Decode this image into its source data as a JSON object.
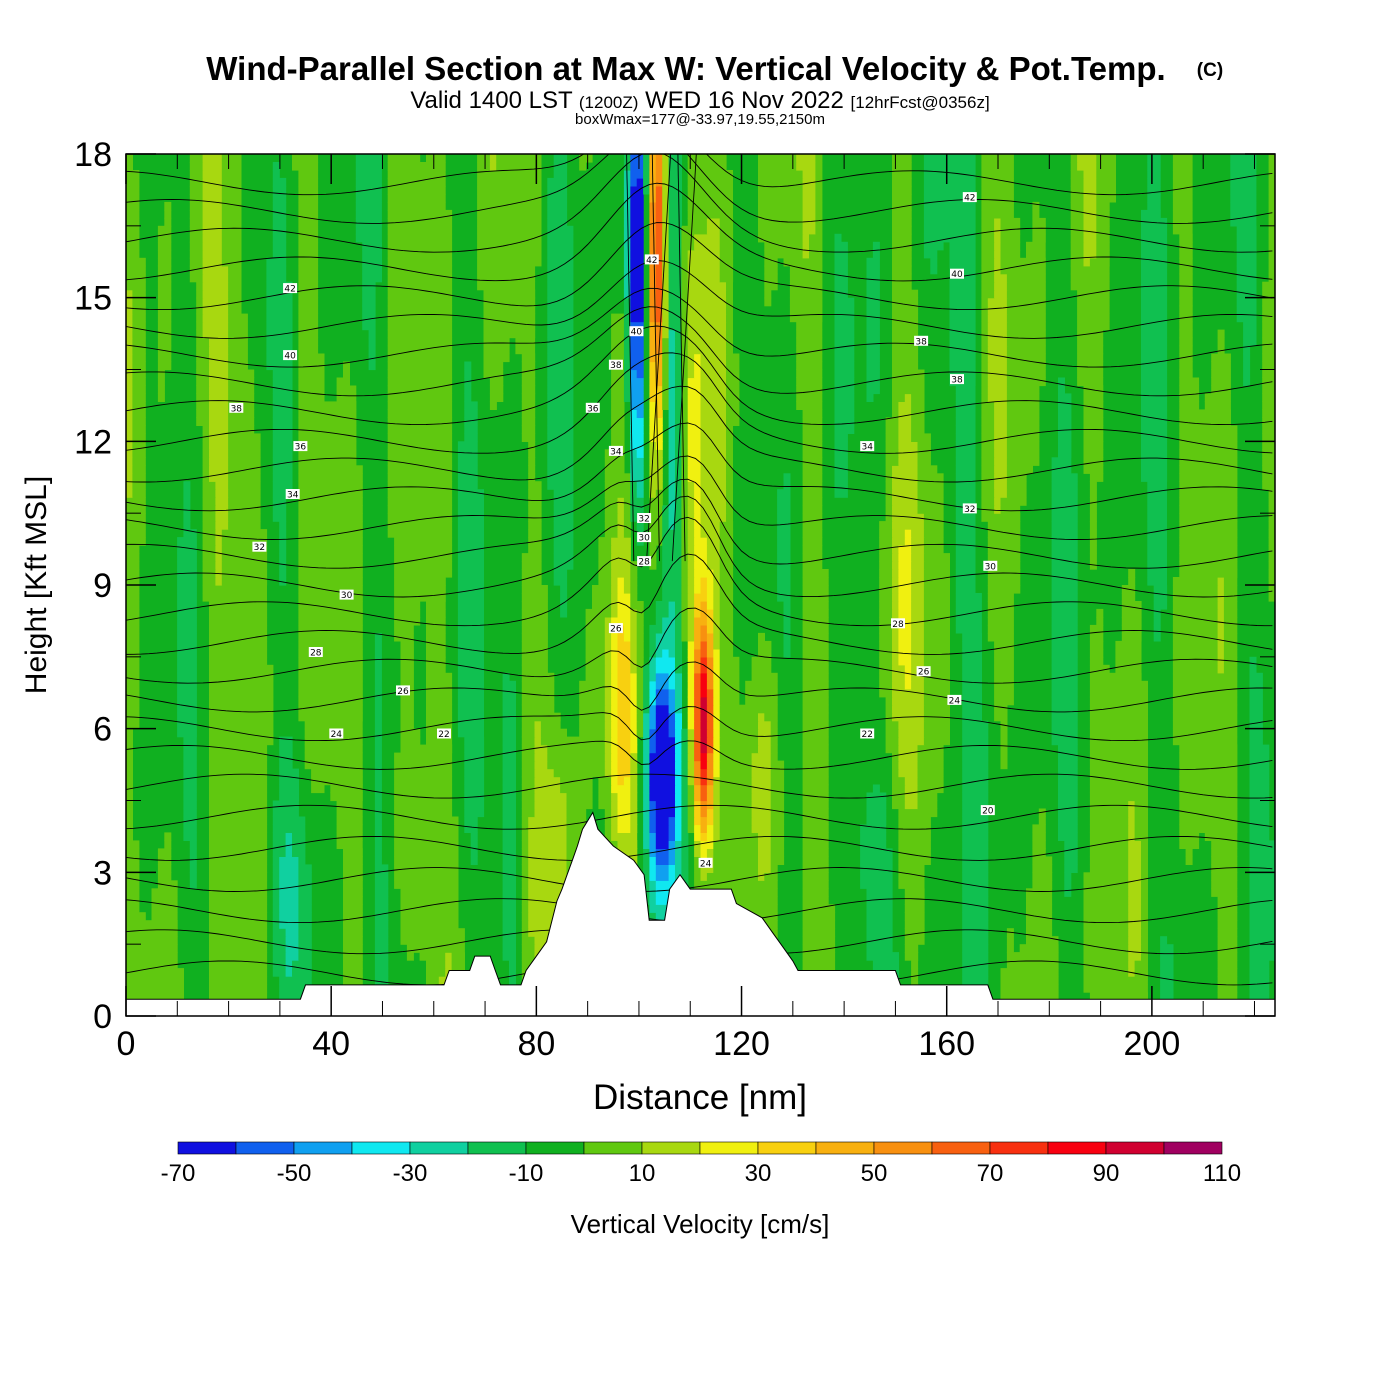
{
  "chart_data": {
    "type": "heatmap",
    "title": "Wind-Parallel Section at Max W: Vertical Velocity & Pot.Temp.",
    "copyright_mark": "(C)",
    "subtitle": {
      "valid": "Valid 1400 LST",
      "utc": "(1200Z)",
      "date": "WED 16 Nov 2022",
      "forecast": "[12hrFcst@0356z]"
    },
    "box_wmax": "boxWmax=177@-33.97,19.55,2150m",
    "xlabel": "Distance [nm]",
    "ylabel": "Height [Kft MSL]",
    "xlim": [
      0,
      224
    ],
    "ylim": [
      0,
      18
    ],
    "x_ticks": [
      "0",
      "40",
      "80",
      "120",
      "160",
      "200"
    ],
    "x_tick_values": [
      0,
      40,
      80,
      120,
      160,
      200
    ],
    "y_ticks": [
      "0",
      "3",
      "6",
      "9",
      "12",
      "15",
      "18"
    ],
    "y_tick_values": [
      0,
      3,
      6,
      9,
      12,
      15,
      18
    ],
    "colorbar": {
      "label": "Vertical Velocity [cm/s]",
      "tick_labels": [
        "-70",
        "-50",
        "-30",
        "-10",
        "10",
        "30",
        "50",
        "70",
        "90",
        "110"
      ],
      "bins": [
        -70,
        -60,
        -50,
        -40,
        -30,
        -20,
        -10,
        0,
        10,
        20,
        30,
        40,
        50,
        60,
        70,
        80,
        90,
        100,
        110
      ],
      "colors": [
        "#1010e0",
        "#1060ee",
        "#10a0f0",
        "#10e8f0",
        "#10d0a0",
        "#10c050",
        "#10b020",
        "#60c810",
        "#a8d810",
        "#f0f010",
        "#f8d010",
        "#f8b010",
        "#f89010",
        "#f86010",
        "#f83010",
        "#f80010",
        "#d00030",
        "#a00060"
      ]
    },
    "contour_variable": "Potential temperature",
    "contour_labels": [
      {
        "text": "42",
        "x": 32,
        "y": 15.2
      },
      {
        "text": "40",
        "x": 32,
        "y": 13.8
      },
      {
        "text": "38",
        "x": 21.5,
        "y": 12.7
      },
      {
        "text": "36",
        "x": 34,
        "y": 11.9
      },
      {
        "text": "34",
        "x": 32.5,
        "y": 10.9
      },
      {
        "text": "32",
        "x": 26,
        "y": 9.8
      },
      {
        "text": "30",
        "x": 43,
        "y": 8.8
      },
      {
        "text": "28",
        "x": 37,
        "y": 7.6
      },
      {
        "text": "26",
        "x": 54,
        "y": 6.8
      },
      {
        "text": "24",
        "x": 41,
        "y": 5.9
      },
      {
        "text": "22",
        "x": 62,
        "y": 5.9
      },
      {
        "text": "42",
        "x": 102.5,
        "y": 15.8
      },
      {
        "text": "40",
        "x": 99.5,
        "y": 14.3
      },
      {
        "text": "38",
        "x": 95.5,
        "y": 13.6
      },
      {
        "text": "36",
        "x": 91,
        "y": 12.7
      },
      {
        "text": "34",
        "x": 95.5,
        "y": 11.8
      },
      {
        "text": "32",
        "x": 101,
        "y": 10.4
      },
      {
        "text": "30",
        "x": 101,
        "y": 10
      },
      {
        "text": "28",
        "x": 101,
        "y": 9.5
      },
      {
        "text": "26",
        "x": 95.5,
        "y": 8.1
      },
      {
        "text": "24",
        "x": 113,
        "y": 3.2
      },
      {
        "text": "42",
        "x": 164.5,
        "y": 17.1
      },
      {
        "text": "40",
        "x": 162,
        "y": 15.5
      },
      {
        "text": "38",
        "x": 155,
        "y": 14.1
      },
      {
        "text": "38",
        "x": 162,
        "y": 13.3
      },
      {
        "text": "34",
        "x": 144.5,
        "y": 11.9
      },
      {
        "text": "32",
        "x": 164.5,
        "y": 10.6
      },
      {
        "text": "30",
        "x": 168.5,
        "y": 9.4
      },
      {
        "text": "28",
        "x": 150.5,
        "y": 8.2
      },
      {
        "text": "26",
        "x": 155.5,
        "y": 7.2
      },
      {
        "text": "24",
        "x": 161.5,
        "y": 6.6
      },
      {
        "text": "22",
        "x": 144.5,
        "y": 5.9
      },
      {
        "text": "20",
        "x": 168,
        "y": 4.3
      }
    ],
    "terrain_profile": [
      [
        0,
        0.35
      ],
      [
        34,
        0.35
      ],
      [
        35,
        0.65
      ],
      [
        62,
        0.65
      ],
      [
        63,
        0.95
      ],
      [
        67,
        0.95
      ],
      [
        68,
        1.25
      ],
      [
        71,
        1.25
      ],
      [
        72,
        0.95
      ],
      [
        73,
        0.65
      ],
      [
        77,
        0.65
      ],
      [
        78,
        0.95
      ],
      [
        80,
        1.25
      ],
      [
        82,
        1.55
      ],
      [
        84,
        2.4
      ],
      [
        85,
        2.65
      ],
      [
        86,
        2.95
      ],
      [
        87,
        3.25
      ],
      [
        88,
        3.55
      ],
      [
        89,
        3.9
      ],
      [
        91,
        4.25
      ],
      [
        92,
        3.9
      ],
      [
        95,
        3.55
      ],
      [
        99,
        3.25
      ],
      [
        101,
        2.95
      ],
      [
        102,
        2.0
      ],
      [
        105,
        2.0
      ],
      [
        106,
        2.65
      ],
      [
        108,
        2.95
      ],
      [
        110,
        2.65
      ],
      [
        118,
        2.65
      ],
      [
        119,
        2.35
      ],
      [
        124,
        2.05
      ],
      [
        126,
        1.75
      ],
      [
        128,
        1.45
      ],
      [
        130,
        1.15
      ],
      [
        131,
        0.95
      ],
      [
        150,
        0.95
      ],
      [
        151,
        0.65
      ],
      [
        168,
        0.65
      ],
      [
        169,
        0.35
      ],
      [
        224,
        0.35
      ]
    ]
  }
}
